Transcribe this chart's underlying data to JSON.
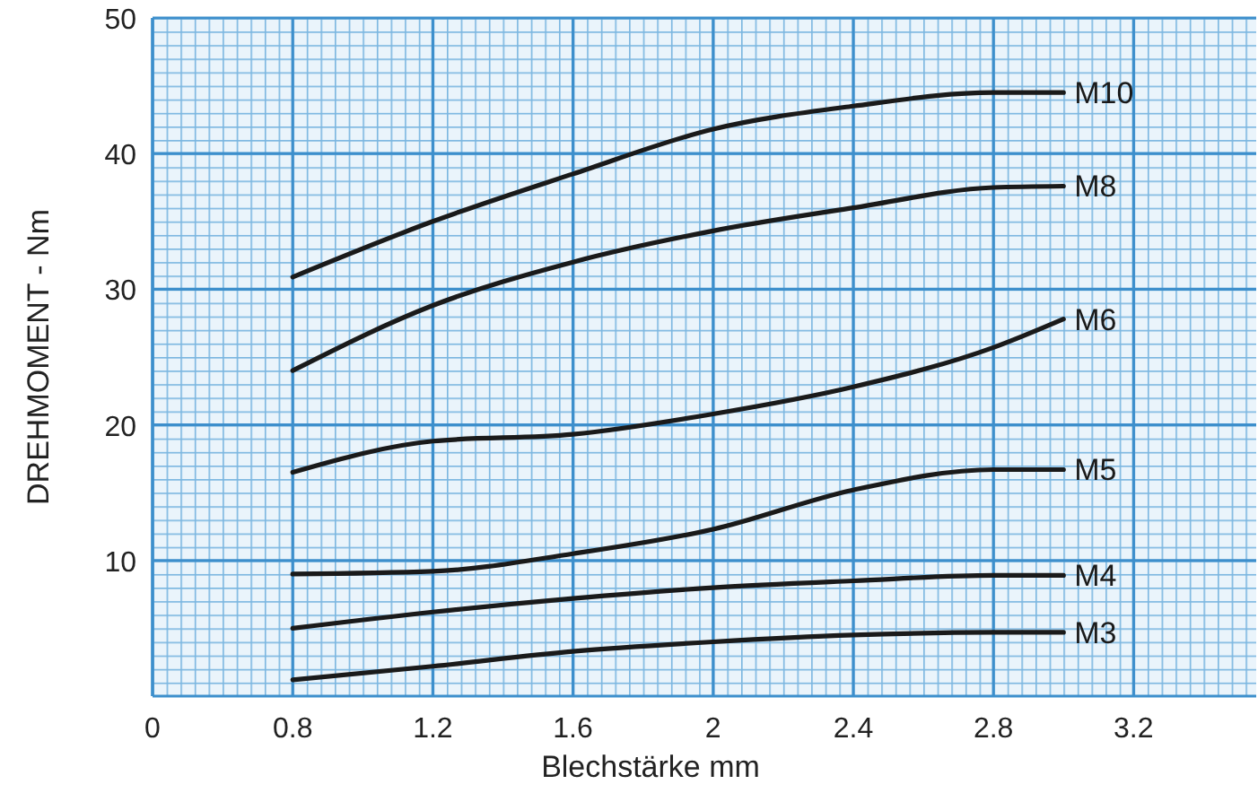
{
  "chart_data": {
    "type": "line",
    "xlabel": "Blechstärke mm",
    "ylabel": "DREHMOMENT - Nm",
    "x": [
      0.8,
      1.2,
      1.6,
      2.0,
      2.4,
      2.8,
      3.0
    ],
    "xlim": [
      0.4,
      3.55
    ],
    "xticks": [
      {
        "value": 0.4,
        "label": "0"
      },
      0.8,
      1.2,
      1.6,
      2.0,
      2.4,
      2.8,
      3.2
    ],
    "ylim": [
      0,
      50
    ],
    "yticks": [
      10,
      20,
      30,
      40,
      50
    ],
    "grid": true,
    "legend": false,
    "marker": "none",
    "line_style": "solid",
    "series": [
      {
        "name": "M10",
        "color": "#1a1a1a",
        "values": [
          30.9,
          35,
          38.5,
          41.8,
          43.5,
          44.5,
          44.5
        ]
      },
      {
        "name": "M8",
        "color": "#1a1a1a",
        "values": [
          24,
          28.8,
          32,
          34.3,
          36,
          37.5,
          37.6
        ]
      },
      {
        "name": "M6",
        "color": "#1a1a1a",
        "values": [
          16.5,
          18.8,
          19.3,
          20.8,
          22.8,
          25.7,
          27.8
        ]
      },
      {
        "name": "M5",
        "color": "#1a1a1a",
        "values": [
          9,
          9.2,
          10.5,
          12.3,
          15.2,
          16.7,
          16.7
        ]
      },
      {
        "name": "M4",
        "color": "#1a1a1a",
        "values": [
          5,
          6.2,
          7.2,
          8,
          8.5,
          8.9,
          8.9
        ]
      },
      {
        "name": "M3",
        "color": "#1a1a1a",
        "values": [
          1.2,
          2.2,
          3.3,
          4,
          4.5,
          4.7,
          4.7
        ]
      }
    ]
  }
}
